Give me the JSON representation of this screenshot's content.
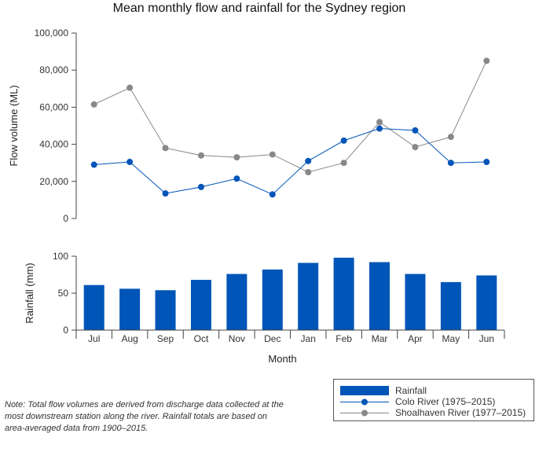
{
  "title": "Mean monthly flow and rainfall for the Sydney region",
  "note": "Note: Total flow volumes are derived from discharge data collected at the most downstream station along the river. Rainfall totals are based on area-averaged data from 1900–2015.",
  "colors": {
    "rainfall": "#0055b8",
    "colo": "#0055b8",
    "shoalhaven": "#888888",
    "axis": "#444444"
  },
  "chart_data": [
    {
      "type": "line",
      "ylabel": "Flow volume (ML)",
      "ylim": [
        0,
        100000
      ],
      "yticks": [
        "0",
        "20,000",
        "40,000",
        "60,000",
        "80,000",
        "100,000"
      ],
      "categories": [
        "Jul",
        "Aug",
        "Sep",
        "Oct",
        "Nov",
        "Dec",
        "Jan",
        "Feb",
        "Mar",
        "Apr",
        "May",
        "Jun"
      ],
      "series": [
        {
          "name": "Colo River (1975–2015)",
          "values": [
            29000,
            30500,
            13500,
            17000,
            21500,
            13000,
            31000,
            42000,
            48500,
            47500,
            30000,
            30500
          ]
        },
        {
          "name": "Shoalhaven River (1977–2015)",
          "values": [
            61500,
            70500,
            38000,
            34000,
            33000,
            34500,
            25000,
            30000,
            52000,
            38500,
            44000,
            85000
          ]
        }
      ]
    },
    {
      "type": "bar",
      "ylabel": "Rainfall (mm)",
      "xlabel": "Month",
      "ylim": [
        0,
        100
      ],
      "yticks": [
        "0",
        "50",
        "100"
      ],
      "categories": [
        "Jul",
        "Aug",
        "Sep",
        "Oct",
        "Nov",
        "Dec",
        "Jan",
        "Feb",
        "Mar",
        "Apr",
        "May",
        "Jun"
      ],
      "series": [
        {
          "name": "Rainfall",
          "values": [
            61,
            56,
            54,
            68,
            76,
            82,
            91,
            98,
            92,
            76,
            65,
            74
          ]
        }
      ]
    }
  ],
  "legend": {
    "items": [
      "Rainfall",
      "Colo River (1975–2015)",
      "Shoalhaven River (1977–2015)"
    ]
  }
}
